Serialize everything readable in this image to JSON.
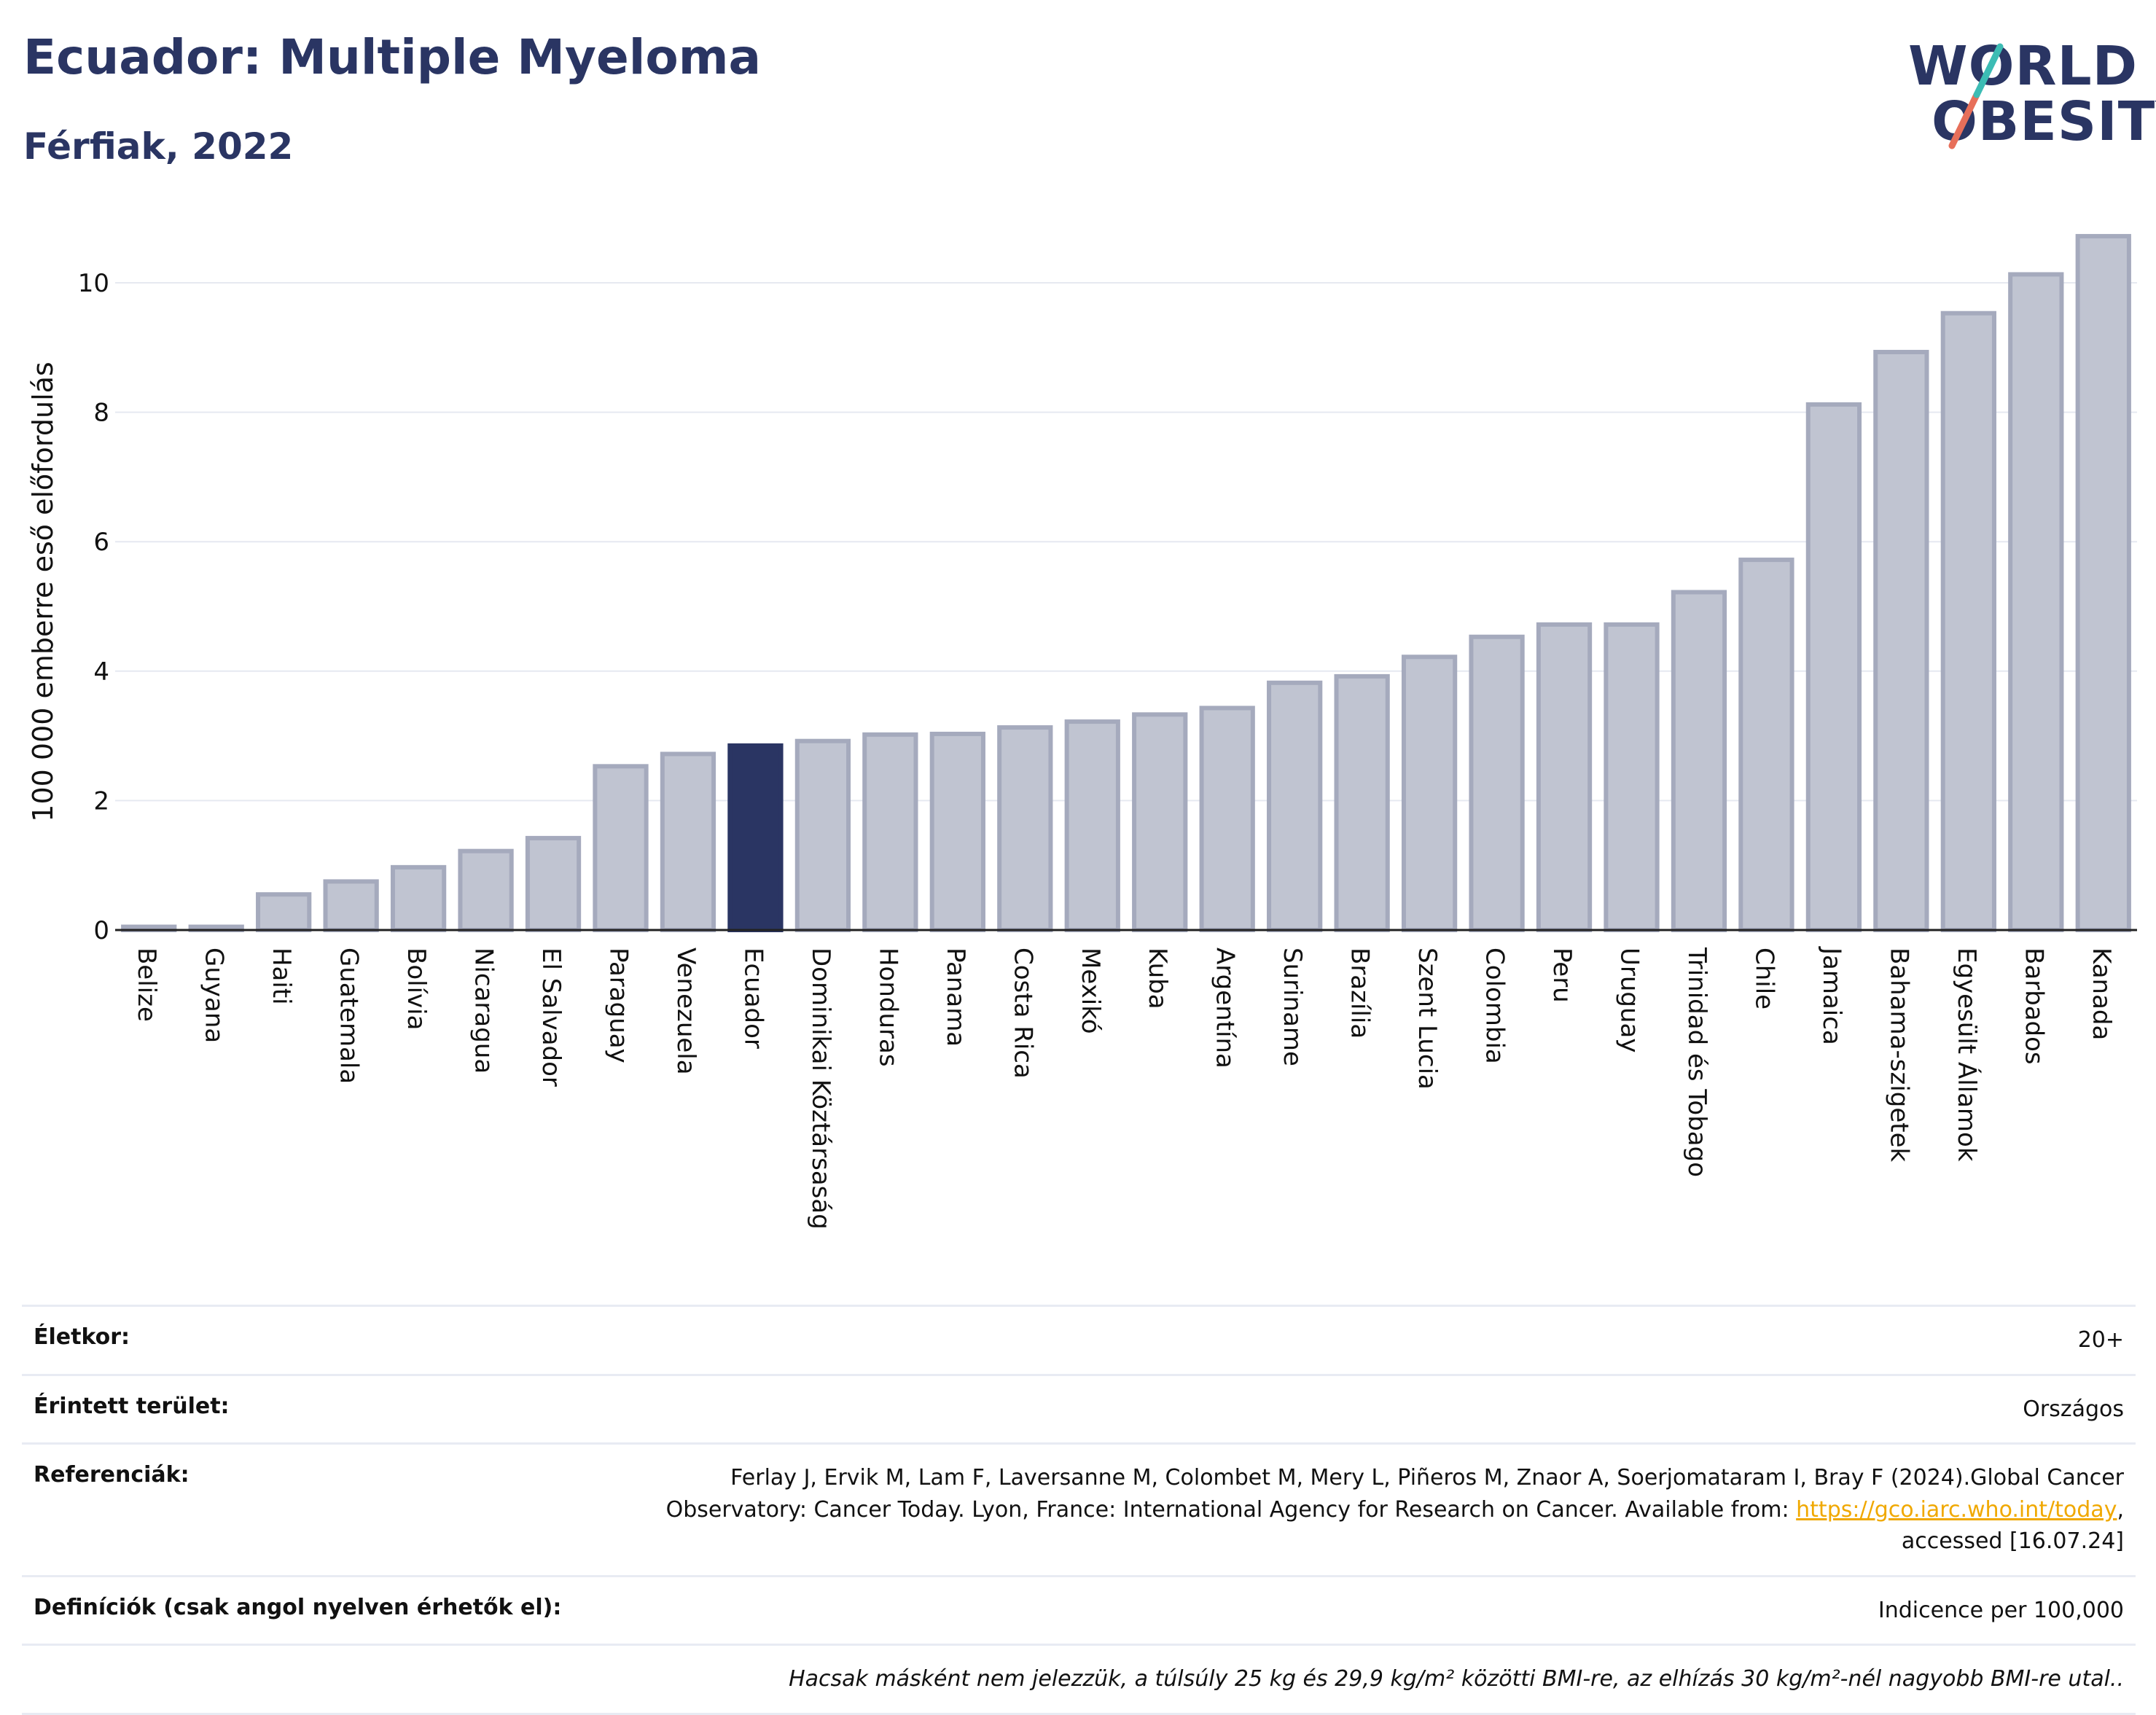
{
  "header": {
    "title": "Ecuador: Multiple Myeloma",
    "subtitle": "Férfiak, 2022"
  },
  "logo": {
    "line1": "WORLD",
    "line2": "OBESITY"
  },
  "chart_data": {
    "type": "bar",
    "ylabel": "100 000 emberre eső előfordulás",
    "ylim": [
      0,
      11
    ],
    "yticks": [
      0,
      2,
      4,
      6,
      8,
      10
    ],
    "grid": true,
    "highlight": "Ecuador",
    "colors": {
      "default": "#c0c4d1",
      "default_stroke": "#a5aabd",
      "highlight": "#2a3563"
    },
    "categories": [
      "Belize",
      "Guyana",
      "Haiti",
      "Guatemala",
      "Bolívia",
      "Nicaragua",
      "El Salvador",
      "Paraguay",
      "Venezuela",
      "Ecuador",
      "Dominikai Köztársaság",
      "Honduras",
      "Panama",
      "Costa Rica",
      "Mexikó",
      "Kuba",
      "Argentína",
      "Suriname",
      "Brazília",
      "Szent Lucia",
      "Colombia",
      "Peru",
      "Uruguay",
      "Trinidad és Tobago",
      "Chile",
      "Jamaica",
      "Bahama-szigetek",
      "Egyesült Államok",
      "Barbados",
      "Kanada"
    ],
    "values": [
      0.05,
      0.05,
      0.55,
      0.75,
      0.97,
      1.22,
      1.42,
      2.53,
      2.72,
      2.85,
      2.92,
      3.02,
      3.03,
      3.13,
      3.22,
      3.33,
      3.43,
      3.82,
      3.92,
      4.22,
      4.53,
      4.72,
      4.72,
      5.22,
      5.72,
      8.12,
      8.93,
      9.53,
      10.13,
      10.72
    ]
  },
  "info": {
    "age_label": "Életkor:",
    "age_value": "20+",
    "area_label": "Érintett terület:",
    "area_value": "Országos",
    "ref_label": "Referenciák:",
    "ref_text1": "Ferlay J, Ervik M, Lam F, Laversanne M, Colombet M, Mery L, Piñeros M, Znaor A, Soerjomataram I, Bray F (2024).Global Cancer",
    "ref_text2": "Observatory: Cancer Today. Lyon, France: International Agency for Research on Cancer. Available from: ",
    "ref_link": "https://gco.iarc.who.int/today",
    "ref_text3": ",",
    "ref_text4": "accessed [16.07.24]",
    "def_label": "Definíciók (csak angol nyelven érhetők el):",
    "def_value": "Indicence per 100,000",
    "note": "Hacsak másként nem jelezzük, a túlsúly 25 kg és 29,9 kg/m² közötti BMI-re, az elhízás 30 kg/m²-nél nagyobb BMI-re utal.."
  }
}
